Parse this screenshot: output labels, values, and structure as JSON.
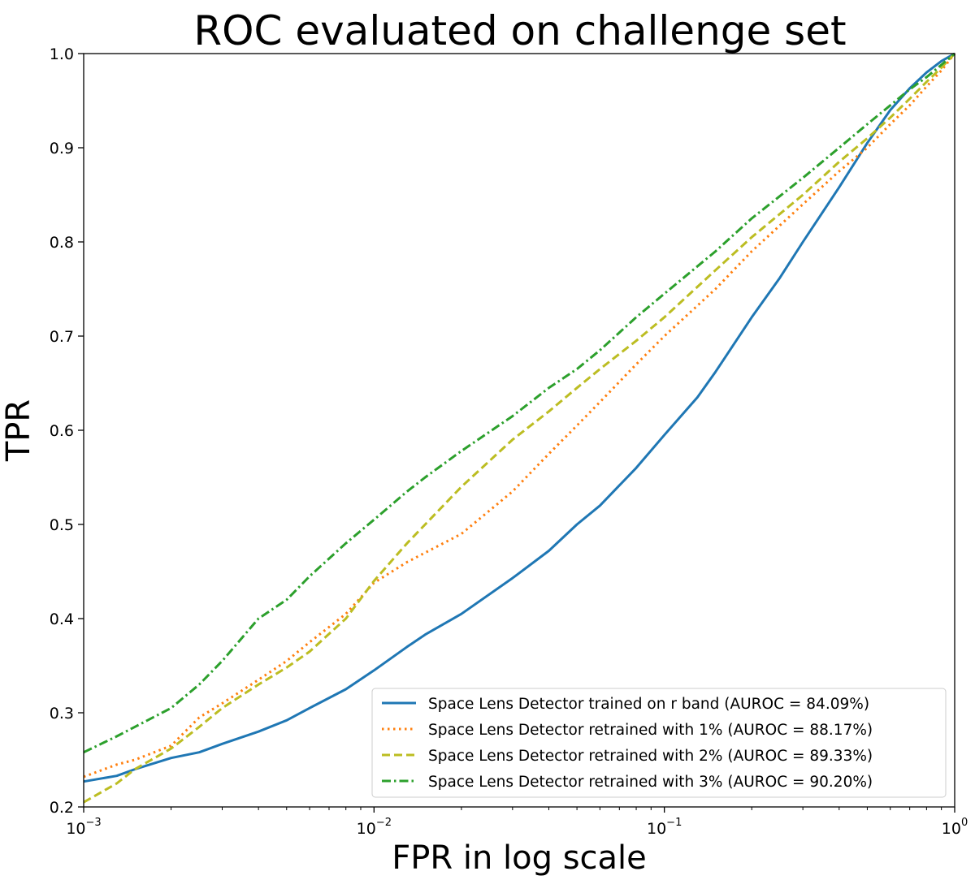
{
  "chart_data": {
    "type": "line",
    "title": "ROC evaluated on challenge set",
    "xlabel": "FPR in log scale",
    "ylabel": "TPR",
    "xscale": "log",
    "xlim": [
      0.001,
      1
    ],
    "ylim": [
      0.2,
      1.0
    ],
    "grid": false,
    "legend_position": "lower-right",
    "x_ticks": [
      {
        "base": "10",
        "exp": "−3",
        "value": 0.001
      },
      {
        "base": "10",
        "exp": "−2",
        "value": 0.01
      },
      {
        "base": "10",
        "exp": "−1",
        "value": 0.1
      },
      {
        "base": "10",
        "exp": "0",
        "value": 1
      }
    ],
    "y_ticks": [
      "0.2",
      "0.3",
      "0.4",
      "0.5",
      "0.6",
      "0.7",
      "0.8",
      "0.9",
      "1.0"
    ],
    "series": [
      {
        "name": "Space Lens Detector trained on r band (AUROC = 84.09%)",
        "color": "#1f77b4",
        "dash": "solid",
        "points": [
          [
            0.001,
            0.227
          ],
          [
            0.0013,
            0.233
          ],
          [
            0.0015,
            0.24
          ],
          [
            0.002,
            0.252
          ],
          [
            0.0025,
            0.258
          ],
          [
            0.003,
            0.267
          ],
          [
            0.004,
            0.28
          ],
          [
            0.005,
            0.292
          ],
          [
            0.006,
            0.305
          ],
          [
            0.008,
            0.325
          ],
          [
            0.01,
            0.345
          ],
          [
            0.013,
            0.37
          ],
          [
            0.015,
            0.383
          ],
          [
            0.02,
            0.405
          ],
          [
            0.03,
            0.443
          ],
          [
            0.04,
            0.472
          ],
          [
            0.05,
            0.5
          ],
          [
            0.06,
            0.52
          ],
          [
            0.08,
            0.56
          ],
          [
            0.1,
            0.595
          ],
          [
            0.13,
            0.635
          ],
          [
            0.15,
            0.662
          ],
          [
            0.2,
            0.72
          ],
          [
            0.25,
            0.762
          ],
          [
            0.3,
            0.8
          ],
          [
            0.4,
            0.858
          ],
          [
            0.5,
            0.905
          ],
          [
            0.6,
            0.94
          ],
          [
            0.7,
            0.963
          ],
          [
            0.8,
            0.98
          ],
          [
            0.9,
            0.992
          ],
          [
            1.0,
            1.0
          ]
        ]
      },
      {
        "name": "Space Lens Detector retrained with 1% (AUROC = 88.17%)",
        "color": "#ff7f0e",
        "dash": "dotted",
        "points": [
          [
            0.001,
            0.232
          ],
          [
            0.0013,
            0.245
          ],
          [
            0.0015,
            0.25
          ],
          [
            0.002,
            0.265
          ],
          [
            0.0025,
            0.295
          ],
          [
            0.003,
            0.31
          ],
          [
            0.004,
            0.335
          ],
          [
            0.005,
            0.355
          ],
          [
            0.006,
            0.375
          ],
          [
            0.008,
            0.405
          ],
          [
            0.01,
            0.438
          ],
          [
            0.013,
            0.46
          ],
          [
            0.015,
            0.47
          ],
          [
            0.02,
            0.49
          ],
          [
            0.03,
            0.535
          ],
          [
            0.04,
            0.575
          ],
          [
            0.05,
            0.605
          ],
          [
            0.06,
            0.63
          ],
          [
            0.08,
            0.67
          ],
          [
            0.1,
            0.7
          ],
          [
            0.15,
            0.75
          ],
          [
            0.2,
            0.79
          ],
          [
            0.3,
            0.84
          ],
          [
            0.4,
            0.875
          ],
          [
            0.5,
            0.9
          ],
          [
            0.6,
            0.925
          ],
          [
            0.7,
            0.945
          ],
          [
            0.8,
            0.965
          ],
          [
            0.9,
            0.982
          ],
          [
            1.0,
            1.0
          ]
        ]
      },
      {
        "name": "Space Lens Detector retrained with 2% (AUROC = 89.33%)",
        "color": "#bcbd22",
        "dash": "dashed",
        "points": [
          [
            0.001,
            0.205
          ],
          [
            0.0013,
            0.225
          ],
          [
            0.0015,
            0.24
          ],
          [
            0.002,
            0.262
          ],
          [
            0.0025,
            0.285
          ],
          [
            0.003,
            0.305
          ],
          [
            0.004,
            0.33
          ],
          [
            0.005,
            0.348
          ],
          [
            0.006,
            0.365
          ],
          [
            0.008,
            0.4
          ],
          [
            0.01,
            0.44
          ],
          [
            0.013,
            0.48
          ],
          [
            0.015,
            0.5
          ],
          [
            0.02,
            0.54
          ],
          [
            0.03,
            0.59
          ],
          [
            0.04,
            0.62
          ],
          [
            0.05,
            0.645
          ],
          [
            0.06,
            0.665
          ],
          [
            0.08,
            0.695
          ],
          [
            0.1,
            0.72
          ],
          [
            0.15,
            0.77
          ],
          [
            0.2,
            0.805
          ],
          [
            0.3,
            0.85
          ],
          [
            0.4,
            0.885
          ],
          [
            0.5,
            0.91
          ],
          [
            0.6,
            0.932
          ],
          [
            0.7,
            0.952
          ],
          [
            0.8,
            0.97
          ],
          [
            0.9,
            0.985
          ],
          [
            1.0,
            1.0
          ]
        ]
      },
      {
        "name": "Space Lens Detector retrained with 3% (AUROC = 90.20%)",
        "color": "#2ca02c",
        "dash": "dashdot",
        "points": [
          [
            0.001,
            0.258
          ],
          [
            0.0013,
            0.275
          ],
          [
            0.0015,
            0.285
          ],
          [
            0.002,
            0.305
          ],
          [
            0.0025,
            0.33
          ],
          [
            0.003,
            0.355
          ],
          [
            0.004,
            0.4
          ],
          [
            0.005,
            0.42
          ],
          [
            0.006,
            0.445
          ],
          [
            0.008,
            0.48
          ],
          [
            0.01,
            0.505
          ],
          [
            0.013,
            0.535
          ],
          [
            0.015,
            0.55
          ],
          [
            0.02,
            0.578
          ],
          [
            0.03,
            0.615
          ],
          [
            0.04,
            0.645
          ],
          [
            0.05,
            0.665
          ],
          [
            0.06,
            0.685
          ],
          [
            0.08,
            0.72
          ],
          [
            0.1,
            0.745
          ],
          [
            0.15,
            0.79
          ],
          [
            0.2,
            0.825
          ],
          [
            0.3,
            0.868
          ],
          [
            0.4,
            0.9
          ],
          [
            0.5,
            0.925
          ],
          [
            0.6,
            0.945
          ],
          [
            0.7,
            0.962
          ],
          [
            0.8,
            0.975
          ],
          [
            0.9,
            0.988
          ],
          [
            1.0,
            1.0
          ]
        ]
      }
    ]
  }
}
